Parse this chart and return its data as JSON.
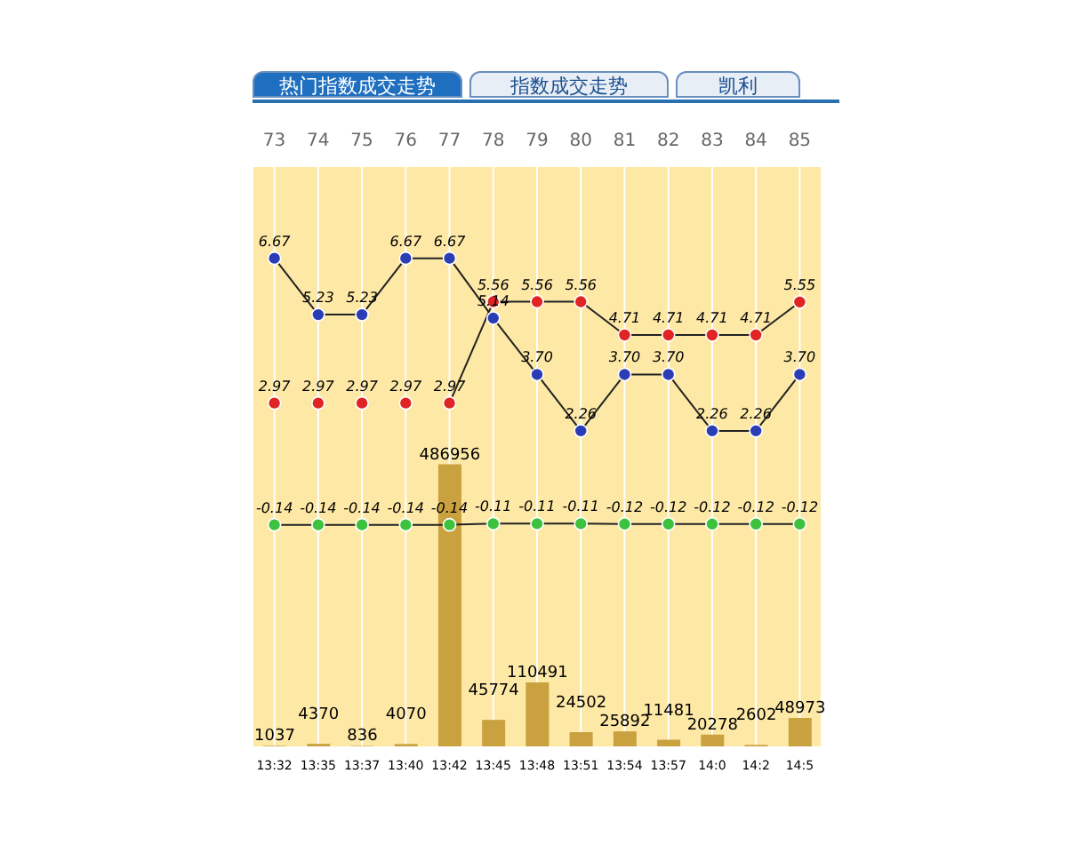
{
  "chart_data": {
    "type": "line",
    "title": "热门指数成交走势",
    "annotations": [
      "指数成交走势",
      "凯利"
    ],
    "categories": [
      "13:32",
      "13:35",
      "13:37",
      "13:40",
      "13:42",
      "13:45",
      "13:48",
      "13:51",
      "13:54",
      "13:57",
      "14:0",
      "14:2",
      "14:5"
    ],
    "x2lim": [
      72.5,
      85.5
    ],
    "x2ticks": [
      73,
      74,
      75,
      76,
      77,
      78,
      79,
      80,
      81,
      82,
      83,
      84,
      85
    ],
    "ylim": [
      -5.8,
      9
    ],
    "y2lim": [
      0,
      1000000
    ],
    "tick_labels": "x",
    "grid": "x",
    "marker": "circle",
    "line_style": "solid",
    "data_labels": true,
    "series": [
      {
        "color": "#2b3db5",
        "values": [
          6.67,
          5.23,
          5.23,
          6.67,
          6.67,
          5.14,
          3.7,
          2.26,
          3.7,
          3.7,
          2.26,
          2.26,
          3.7
        ],
        "value_labels": [
          "6.67",
          "5.23",
          "5.23",
          "6.67",
          "6.67",
          "5.14",
          "3.70",
          "2.26",
          "3.70",
          "3.70",
          "2.26",
          "2.26",
          "3.70"
        ]
      },
      {
        "type": "scatter",
        "color": "#e02424",
        "values": [
          2.97,
          2.97,
          2.97,
          2.97,
          null,
          null,
          null,
          null,
          null,
          null,
          null,
          null,
          null
        ]
      },
      {
        "type": "line",
        "color": "#e02424",
        "values": [
          null,
          null,
          null,
          null,
          2.97,
          5.56,
          5.56,
          5.56,
          4.71,
          4.71,
          4.71,
          4.71,
          5.55
        ]
      },
      {
        "type": "line",
        "color": "#3cc23c",
        "values": [
          -0.14,
          -0.14,
          -0.14,
          -0.14,
          -0.14,
          -0.11,
          -0.11,
          -0.11,
          -0.12,
          -0.12,
          -0.12,
          -0.12,
          -0.12
        ]
      },
      {
        "type": "bar",
        "axis": "y2",
        "color": "#c9a13e",
        "values": [
          1037,
          4370,
          836,
          4070,
          486956,
          45774,
          110491,
          24502,
          25892,
          11481,
          20278,
          2602,
          48973
        ]
      }
    ]
  }
}
